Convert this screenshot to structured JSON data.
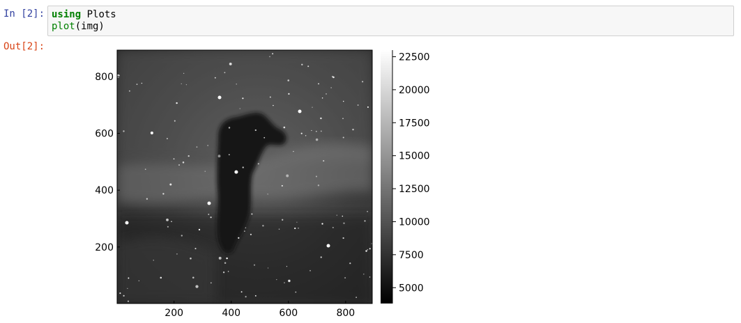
{
  "notebook": {
    "input_prompt": "In [2]:",
    "output_prompt": "Out[2]:",
    "code": {
      "line1_keyword": "using",
      "line1_rest": " Plots",
      "line2_fn": "plot",
      "line2_rest": "(img)"
    }
  },
  "chart_data": {
    "type": "heatmap",
    "image_description_hidden": false,
    "x_ticks": [
      200,
      400,
      600,
      800
    ],
    "y_ticks": [
      200,
      400,
      600,
      800
    ],
    "xlim": [
      1,
      893
    ],
    "ylim": [
      1,
      893
    ],
    "colorbar": {
      "colormap": "grays",
      "ticks": [
        5000,
        7500,
        10000,
        12500,
        15000,
        17500,
        20000,
        22500
      ],
      "range": [
        3800,
        23000
      ]
    },
    "grid": false
  }
}
